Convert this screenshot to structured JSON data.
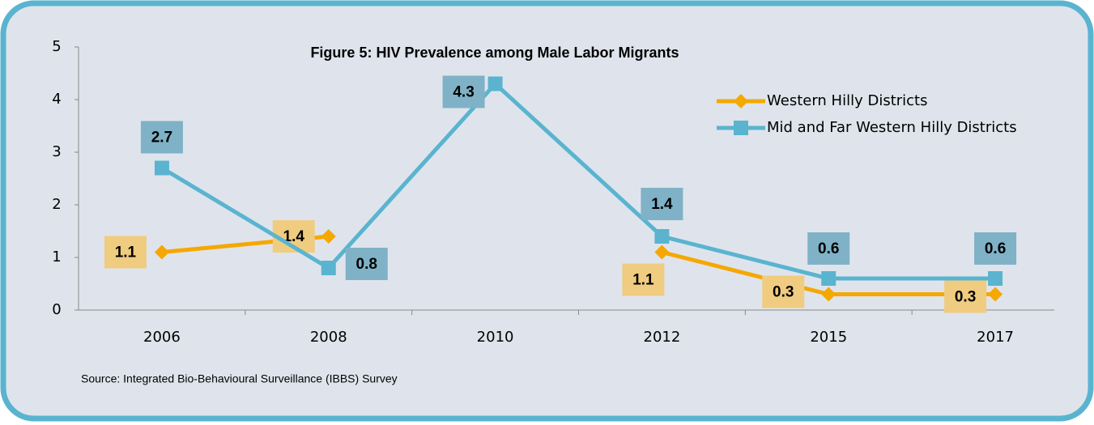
{
  "chart_data": {
    "type": "line",
    "title": "Figure 5: HIV Prevalence among Male Labor Migrants",
    "source": "Source: Integrated Bio-Behavioural Surveillance (IBBS) Survey",
    "categories": [
      "2006",
      "2008",
      "2010",
      "2012",
      "2015",
      "2017"
    ],
    "series": [
      {
        "name": "Western Hilly Districts",
        "color": "#f5a800",
        "marker": "diamond",
        "values": [
          1.1,
          1.4,
          null,
          1.1,
          0.3,
          0.3
        ]
      },
      {
        "name": "Mid and Far Western Hilly Districts",
        "color": "#5ab4cf",
        "marker": "square",
        "values": [
          2.7,
          0.8,
          4.3,
          1.4,
          0.6,
          0.6
        ]
      }
    ],
    "ylim": [
      0,
      5
    ],
    "yticks": [
      0,
      1,
      2,
      3,
      4,
      5
    ],
    "grid": false,
    "legend": "upper right"
  }
}
